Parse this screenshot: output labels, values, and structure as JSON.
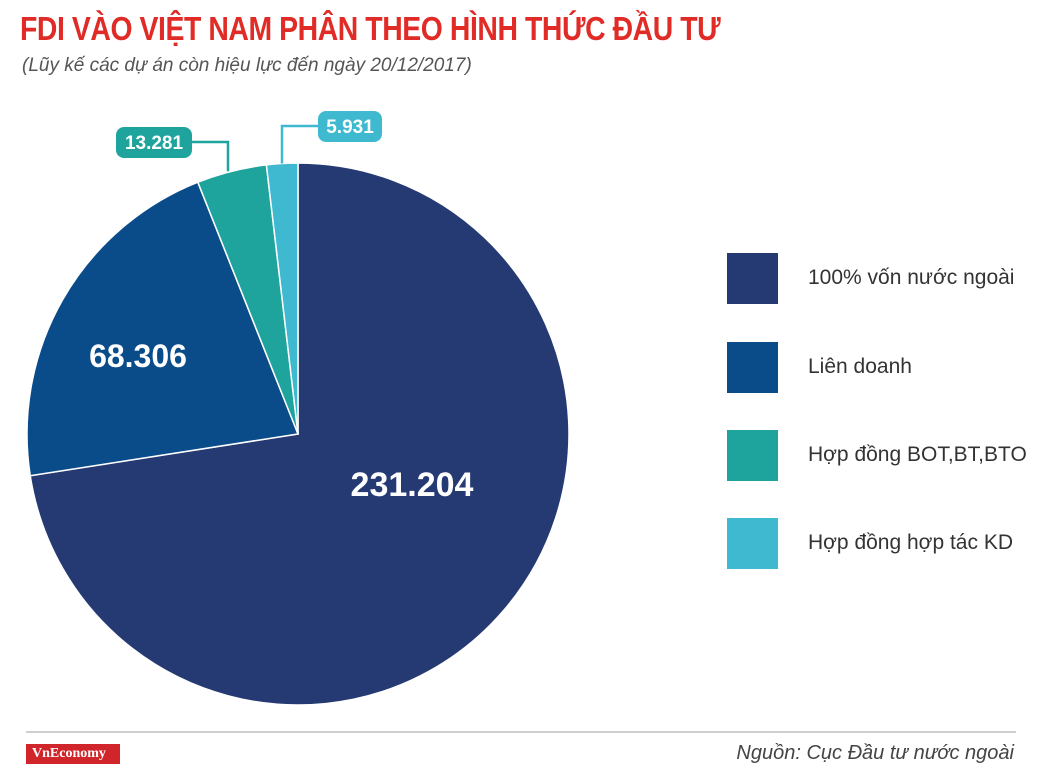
{
  "header": {
    "title": "FDI VÀO VIỆT NAM PHÂN THEO HÌNH THỨC ĐẦU TƯ",
    "subtitle": "(Lũy kế các dự án còn hiệu lực đến ngày 20/12/2017)"
  },
  "chart_data": {
    "type": "pie",
    "title": "FDI VÀO VIỆT NAM PHÂN THEO HÌNH THỨC ĐẦU TƯ",
    "subtitle": "(Lũy kế các dự án còn hiệu lực đến ngày 20/12/2017)",
    "categories": [
      "100% vốn nước ngoài",
      "Liên doanh",
      "Hợp đồng BOT,BT,BTO",
      "Hợp đồng hợp tác KD"
    ],
    "values": [
      231204,
      68306,
      13281,
      5931
    ],
    "value_labels": [
      "231.204",
      "68.306",
      "13.281",
      "5.931"
    ],
    "colors": [
      "#253a72",
      "#0a4c8a",
      "#1fa39d",
      "#3fb9d0"
    ],
    "legend_position": "right",
    "start_angle": "12 o'clock",
    "direction": "clockwise"
  },
  "legend": {
    "items": [
      {
        "label": "100% vốn nước ngoài",
        "color": "#253a72"
      },
      {
        "label": "Liên doanh",
        "color": "#0a4c8a"
      },
      {
        "label": "Hợp đồng BOT,BT,BTO",
        "color": "#1fa39d"
      },
      {
        "label": "Hợp đồng hợp tác KD",
        "color": "#3fb9d0"
      }
    ]
  },
  "footer": {
    "brand": "VnEconomy",
    "source": "Nguồn: Cục Đầu tư nước ngoài"
  }
}
